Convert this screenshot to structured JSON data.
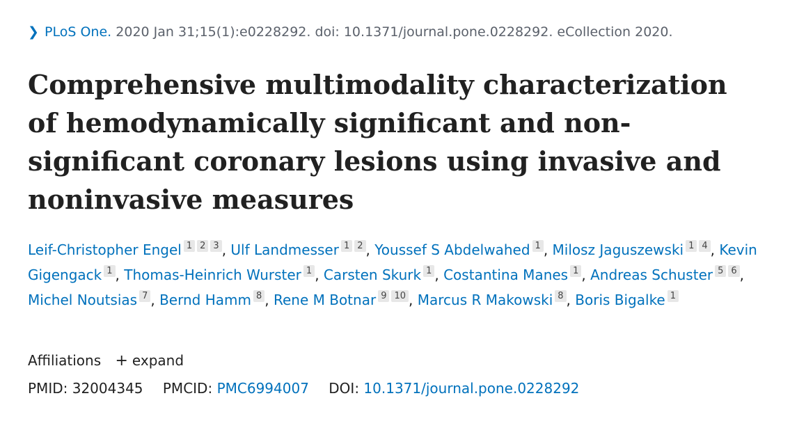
{
  "citation": {
    "journal": "PLoS One.",
    "details": "2020 Jan 31;15(1):e0228292. doi: 10.1371/journal.pone.0228292. eCollection 2020."
  },
  "title": "Comprehensive multimodality characterization of hemodynamically significant and non-significant coronary lesions using invasive and noninvasive measures",
  "authors": [
    {
      "name": "Leif-Christopher Engel",
      "affils": [
        "1",
        "2",
        "3"
      ]
    },
    {
      "name": "Ulf Landmesser",
      "affils": [
        "1",
        "2"
      ]
    },
    {
      "name": "Youssef S Abdelwahed",
      "affils": [
        "1"
      ]
    },
    {
      "name": "Milosz Jaguszewski",
      "affils": [
        "1",
        "4"
      ]
    },
    {
      "name": "Kevin Gigengack",
      "affils": [
        "1"
      ]
    },
    {
      "name": "Thomas-Heinrich Wurster",
      "affils": [
        "1"
      ]
    },
    {
      "name": "Carsten Skurk",
      "affils": [
        "1"
      ]
    },
    {
      "name": "Costantina Manes",
      "affils": [
        "1"
      ]
    },
    {
      "name": "Andreas Schuster",
      "affils": [
        "5",
        "6"
      ]
    },
    {
      "name": "Michel Noutsias",
      "affils": [
        "7"
      ]
    },
    {
      "name": "Bernd Hamm",
      "affils": [
        "8"
      ]
    },
    {
      "name": "Rene M Botnar",
      "affils": [
        "9",
        "10"
      ]
    },
    {
      "name": "Marcus R Makowski",
      "affils": [
        "8"
      ]
    },
    {
      "name": "Boris Bigalke",
      "affils": [
        "1"
      ]
    }
  ],
  "affiliations": {
    "label": "Affiliations",
    "expand_label": "expand",
    "expand_icon": "plus-icon"
  },
  "identifiers": {
    "pmid_label": "PMID:",
    "pmid": "32004345",
    "pmcid_label": "PMCID:",
    "pmcid": "PMC6994007",
    "doi_label": "DOI:",
    "doi": "10.1371/journal.pone.0228292"
  }
}
